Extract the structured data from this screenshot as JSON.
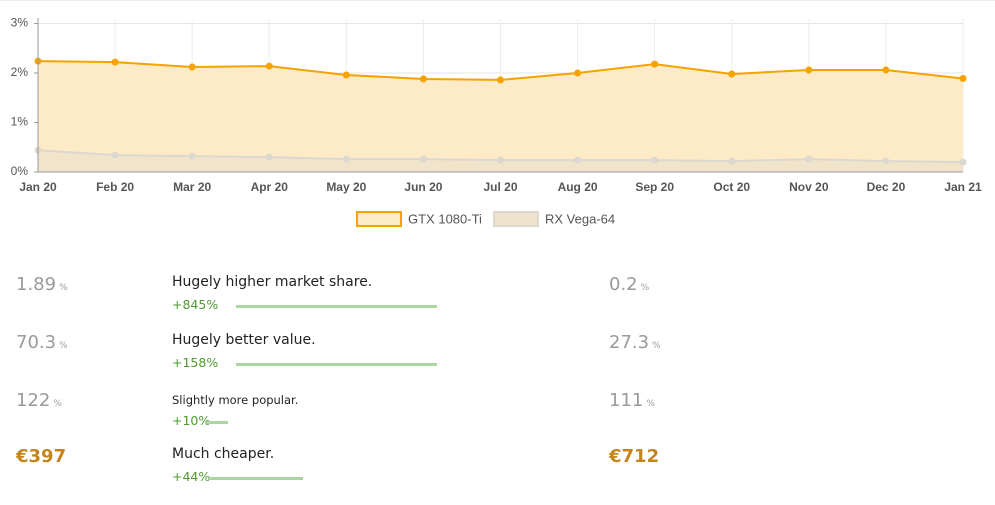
{
  "chart_data": {
    "type": "area",
    "categories": [
      "Jan 20",
      "Feb 20",
      "Mar 20",
      "Apr 20",
      "May 20",
      "Jun 20",
      "Jul 20",
      "Aug 20",
      "Sep 20",
      "Oct 20",
      "Nov 20",
      "Dec 20",
      "Jan 21"
    ],
    "series": [
      {
        "name": "GTX 1080-Ti",
        "color": "#f5a300",
        "fill": "#fdeac6",
        "values": [
          2.24,
          2.22,
          2.12,
          2.14,
          1.96,
          1.88,
          1.86,
          2.0,
          2.18,
          1.98,
          2.06,
          2.06,
          1.89
        ]
      },
      {
        "name": "RX Vega-64",
        "color": "#dcd8d0",
        "fill": "#efe3cb",
        "values": [
          0.44,
          0.34,
          0.32,
          0.3,
          0.26,
          0.26,
          0.24,
          0.24,
          0.24,
          0.22,
          0.26,
          0.22,
          0.2
        ]
      }
    ],
    "ylim": [
      0,
      3
    ],
    "yticks": [
      {
        "value": 0,
        "label": "0%"
      },
      {
        "value": 1,
        "label": "1%"
      },
      {
        "value": 2,
        "label": "2%"
      },
      {
        "value": 3,
        "label": "3%"
      }
    ],
    "grid": true
  },
  "comparison": {
    "rows": [
      {
        "left": {
          "value": "1.89",
          "unit": "%"
        },
        "label": "Hugely higher market share.",
        "delta": "+845%",
        "right": {
          "value": "0.2",
          "unit": "%"
        }
      },
      {
        "left": {
          "value": "70.3",
          "unit": "%"
        },
        "label": "Hugely better value.",
        "delta": "+158%",
        "right": {
          "value": "27.3",
          "unit": "%"
        }
      },
      {
        "left": {
          "value": "122",
          "unit": "%"
        },
        "label": "Slightly more popular.",
        "delta": "+10%",
        "right": {
          "value": "111",
          "unit": "%"
        }
      },
      {
        "left": {
          "value": "€397"
        },
        "label": "Much cheaper.",
        "delta": "+44%",
        "right": {
          "value": "€712"
        }
      }
    ]
  }
}
